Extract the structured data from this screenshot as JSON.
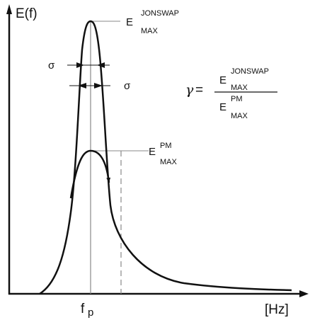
{
  "axes": {
    "y_label": "E(f)",
    "x_unit": "[Hz]",
    "x_tick_main": "f",
    "x_tick_sub": "p"
  },
  "labels": {
    "e_letter": "E",
    "jonswap": "JONSWAP",
    "pm": "PM",
    "max": "MAX",
    "sigma": "σ",
    "gamma": "γ",
    "equals": "="
  },
  "colors": {
    "curve": "#111111",
    "guide": "#888888"
  }
}
